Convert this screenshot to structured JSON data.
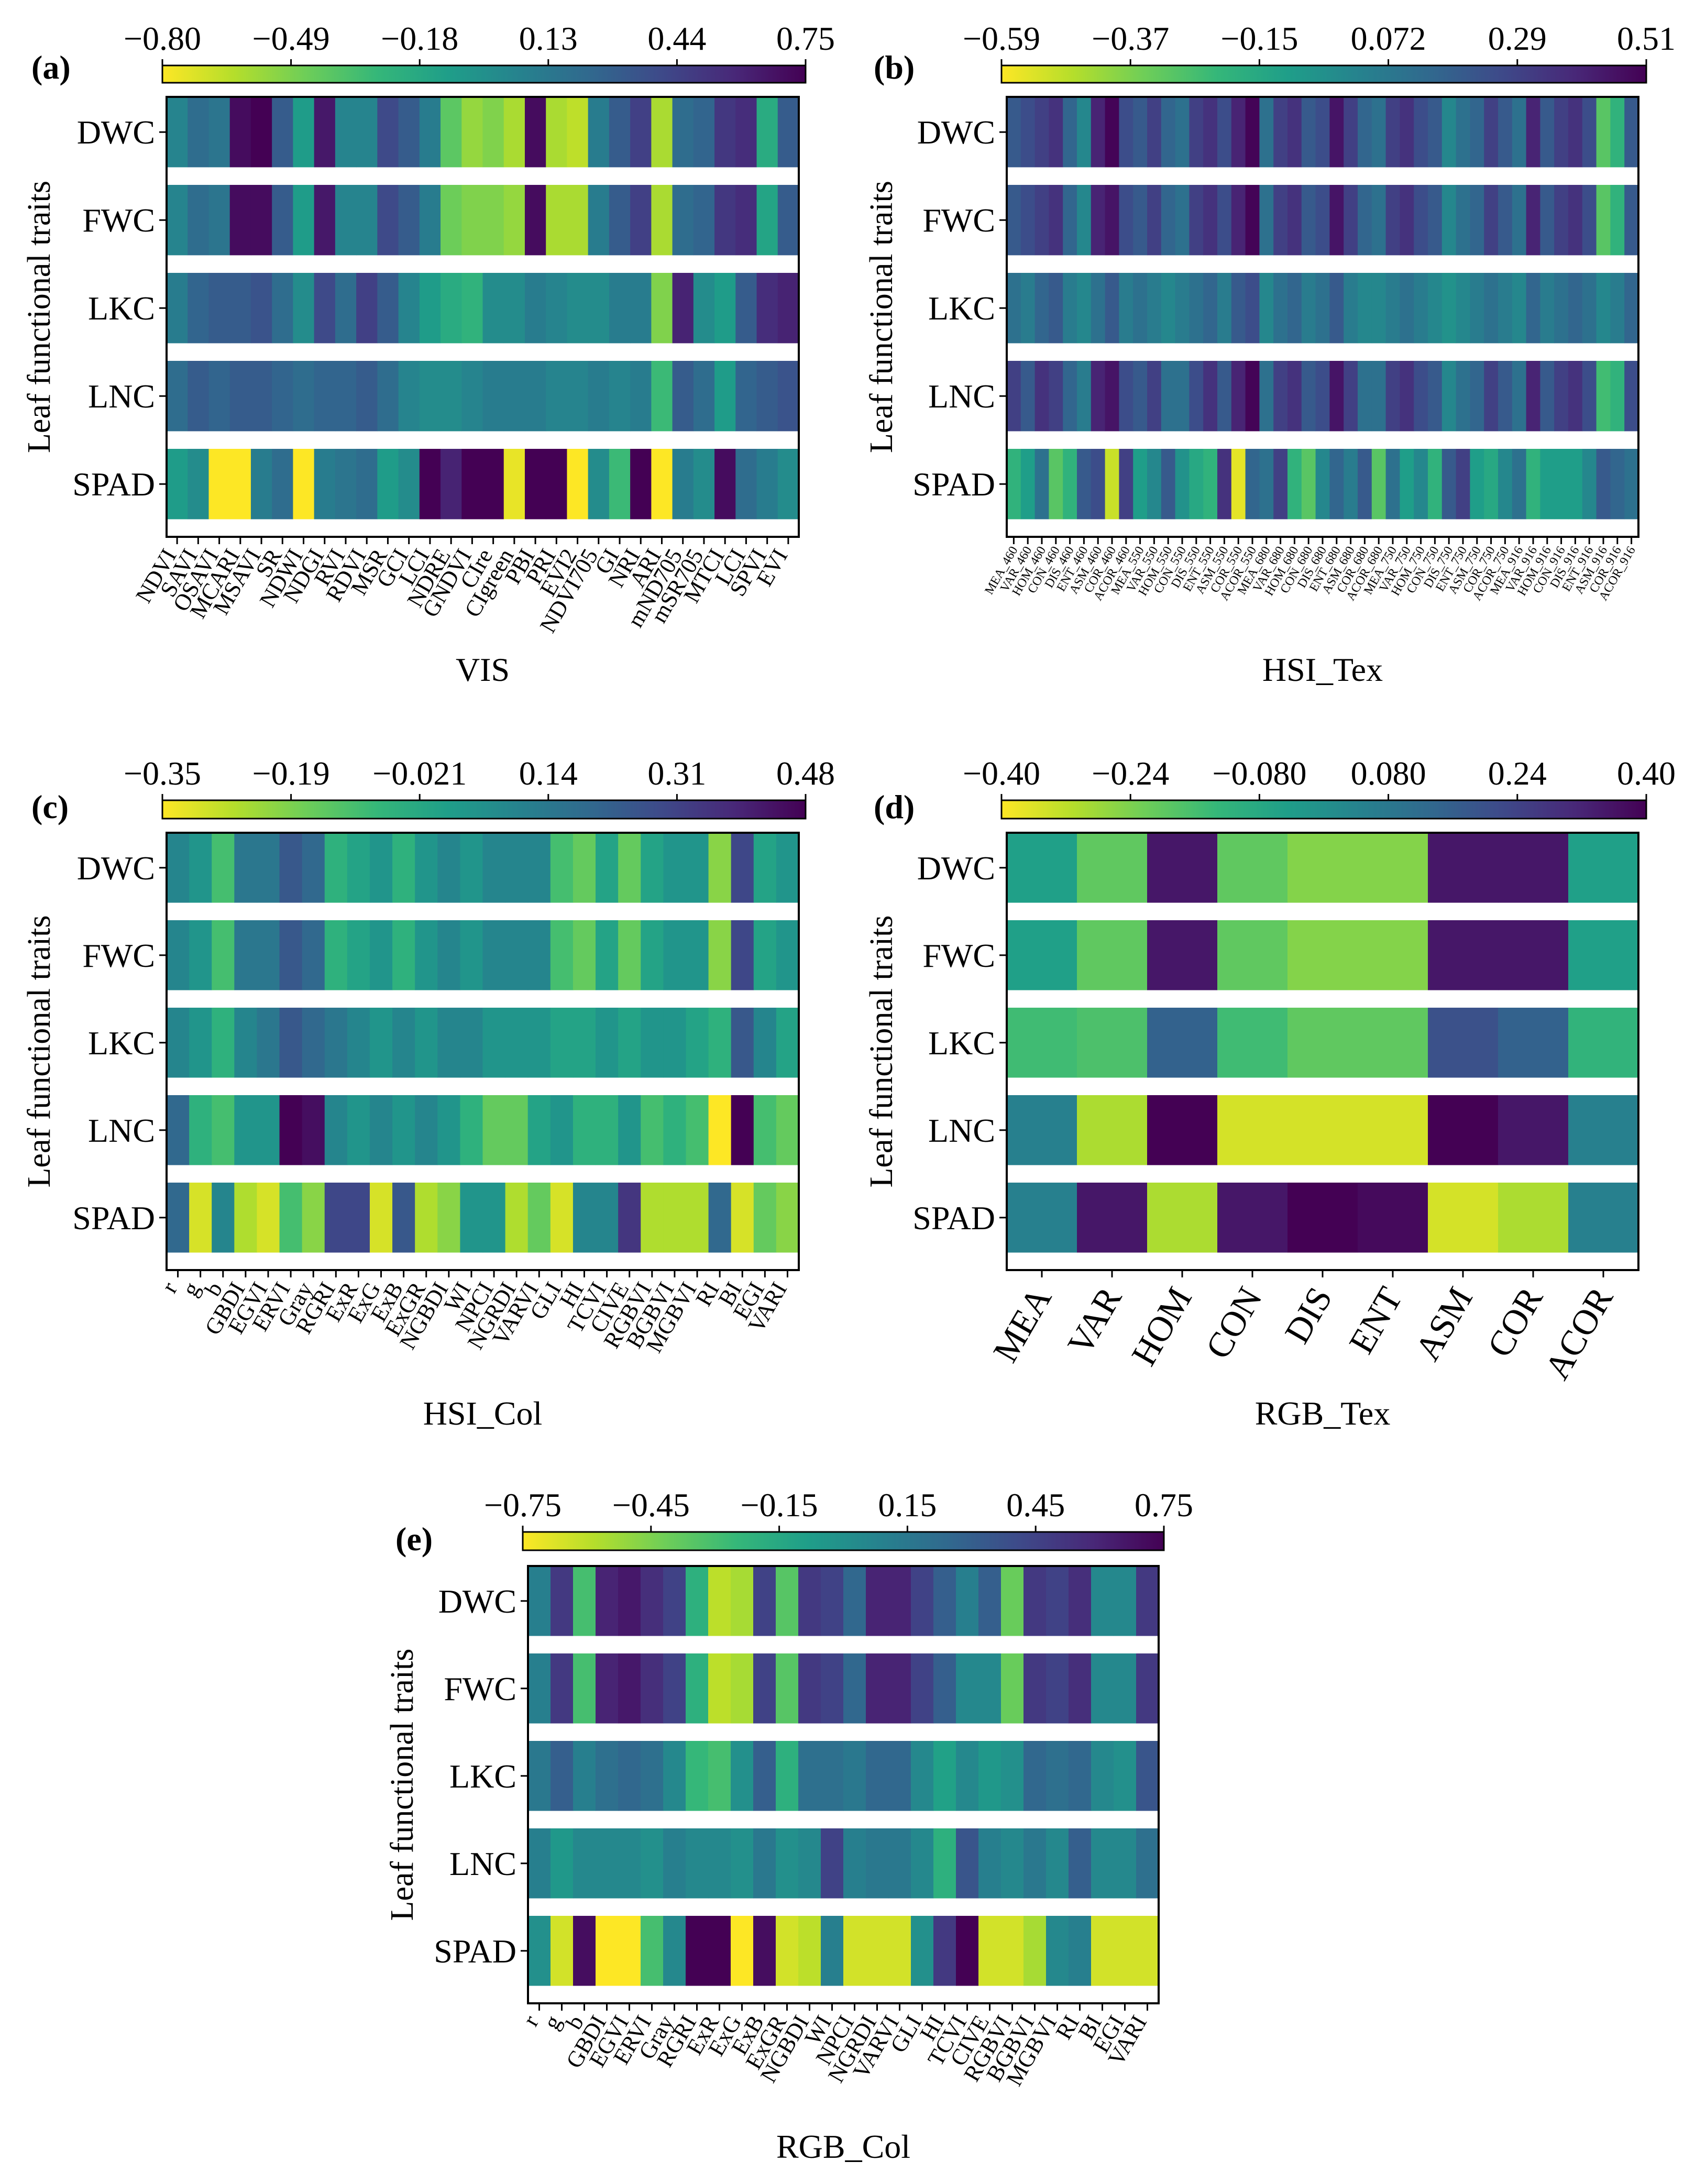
{
  "ylabel": "Leaf functional traits",
  "row_labels": [
    "DWC",
    "FWC",
    "LKC",
    "LNC",
    "SPAD"
  ],
  "colormap": {
    "name": "viridis_r",
    "stops": [
      "#fde725",
      "#b5de2b",
      "#6ece58",
      "#35b779",
      "#1f9e89",
      "#26828e",
      "#31688e",
      "#3e4989",
      "#482878",
      "#440154"
    ]
  },
  "chart_data": [
    {
      "panel": "(a)",
      "type": "heatmap",
      "xlabel": "VIS",
      "colorbar_ticks": [
        "−0.80",
        "−0.49",
        "−0.18",
        "0.13",
        "0.44",
        "0.75"
      ],
      "vmin": -0.8,
      "vmax": 0.75,
      "rows": [
        "DWC",
        "FWC",
        "LKC",
        "LNC",
        "SPAD"
      ],
      "columns": [
        "NDVI",
        "SAVI",
        "OSAVI",
        "MCARI",
        "MSAVI",
        "SR",
        "NDWI",
        "NDGI",
        "RVI",
        "RDVI",
        "MSR",
        "GCI",
        "LCI",
        "NDRE",
        "GNDVI",
        "CIre",
        "CIgreen",
        "PBI",
        "PRI",
        "EVI2",
        "NDVI705",
        "GI",
        "NRI",
        "ARI",
        "mND705",
        "mSR705",
        "MTCI",
        "LCI",
        "SPVI",
        "EVI"
      ],
      "values": [
        [
          0.05,
          0.2,
          0.15,
          0.7,
          0.75,
          0.3,
          -0.1,
          0.65,
          0.05,
          0.05,
          0.4,
          0.3,
          0.1,
          -0.4,
          -0.55,
          -0.5,
          -0.6,
          0.7,
          -0.6,
          -0.65,
          0.1,
          0.3,
          0.45,
          -0.6,
          0.2,
          0.25,
          0.5,
          0.55,
          -0.2,
          0.3
        ],
        [
          0.05,
          0.2,
          0.15,
          0.7,
          0.7,
          0.3,
          -0.1,
          0.65,
          0.05,
          0.05,
          0.4,
          0.3,
          0.1,
          -0.45,
          -0.5,
          -0.5,
          -0.55,
          0.7,
          -0.6,
          -0.6,
          0.1,
          0.3,
          0.45,
          -0.6,
          0.2,
          0.25,
          0.5,
          0.55,
          -0.15,
          0.3
        ],
        [
          0.1,
          0.25,
          0.3,
          0.3,
          0.35,
          0.2,
          0.0,
          0.4,
          0.2,
          0.45,
          0.3,
          0.05,
          -0.1,
          -0.2,
          -0.25,
          0.0,
          0.0,
          0.1,
          0.05,
          0.0,
          0.0,
          0.1,
          0.1,
          -0.5,
          0.6,
          0.0,
          -0.1,
          0.3,
          0.55,
          0.6
        ],
        [
          0.2,
          0.3,
          0.25,
          0.3,
          0.3,
          0.25,
          0.2,
          0.25,
          0.25,
          0.3,
          0.2,
          0.05,
          0.0,
          0.0,
          0.05,
          0.1,
          0.1,
          0.1,
          0.05,
          0.05,
          0.1,
          0.05,
          0.1,
          -0.3,
          0.3,
          0.2,
          -0.1,
          0.25,
          0.3,
          0.35
        ],
        [
          -0.1,
          0.0,
          -0.8,
          -0.8,
          0.1,
          0.2,
          -0.8,
          0.1,
          0.15,
          0.2,
          -0.1,
          0.0,
          0.75,
          0.6,
          0.75,
          0.75,
          -0.75,
          0.75,
          0.75,
          -0.8,
          0.0,
          -0.3,
          0.75,
          -0.8,
          0.1,
          0.0,
          0.7,
          0.2,
          0.1,
          0.0
        ]
      ]
    },
    {
      "panel": "(b)",
      "type": "heatmap",
      "xlabel": "HSI_Tex",
      "colorbar_ticks": [
        "−0.59",
        "−0.37",
        "−0.15",
        "0.072",
        "0.29",
        "0.51"
      ],
      "vmin": -0.59,
      "vmax": 0.51,
      "rows": [
        "DWC",
        "FWC",
        "LKC",
        "LNC",
        "SPAD"
      ],
      "columns": [
        "MEA_460",
        "VAR_460",
        "HOM_460",
        "CON_460",
        "DIS_460",
        "ENT_460",
        "ASM_460",
        "COR_460",
        "ACOR_460",
        "MEA_550",
        "VAR_550",
        "HOM_550",
        "CON_550",
        "DIS_550",
        "ENT_550",
        "ASM_550",
        "COR_550",
        "ACOR_550",
        "MEA_680",
        "VAR_680",
        "HOM_680",
        "CON_680",
        "DIS_680",
        "ENT_680",
        "ASM_680",
        "COR_680",
        "ACOR_680",
        "MEA_750",
        "VAR_750",
        "HOM_750",
        "CON_750",
        "DIS_750",
        "ENT_750",
        "ASM_750",
        "COR_750",
        "ACOR_750",
        "MEA_916",
        "VAR_916",
        "HOM_916",
        "CON_916",
        "DIS_916",
        "ENT_916",
        "ASM_916",
        "COR_916",
        "ACOR_916"
      ],
      "values": [
        [
          0.2,
          0.25,
          0.3,
          0.35,
          0.15,
          0.0,
          0.4,
          0.5,
          0.25,
          0.2,
          0.3,
          0.15,
          0.1,
          0.3,
          0.35,
          0.25,
          0.4,
          0.5,
          0.1,
          0.3,
          0.35,
          0.2,
          0.25,
          0.45,
          0.3,
          0.15,
          0.1,
          0.3,
          0.35,
          0.25,
          0.2,
          0.0,
          0.1,
          0.15,
          0.3,
          0.2,
          0.1,
          0.4,
          0.2,
          0.3,
          0.35,
          0.25,
          -0.3,
          -0.2,
          0.2
        ],
        [
          0.2,
          0.25,
          0.3,
          0.35,
          0.15,
          0.0,
          0.4,
          0.45,
          0.25,
          0.2,
          0.3,
          0.15,
          0.1,
          0.3,
          0.35,
          0.25,
          0.4,
          0.5,
          0.1,
          0.3,
          0.35,
          0.2,
          0.25,
          0.45,
          0.3,
          0.15,
          0.1,
          0.3,
          0.35,
          0.25,
          0.2,
          0.0,
          0.1,
          0.15,
          0.3,
          0.2,
          0.1,
          0.4,
          0.2,
          0.3,
          0.35,
          0.25,
          -0.3,
          -0.2,
          0.2
        ],
        [
          0.1,
          0.05,
          0.15,
          0.2,
          0.05,
          0.0,
          0.1,
          0.2,
          0.05,
          0.1,
          0.05,
          0.0,
          0.05,
          0.1,
          0.15,
          0.05,
          0.2,
          0.25,
          0.0,
          0.1,
          0.15,
          0.05,
          0.1,
          0.2,
          0.05,
          0.0,
          0.0,
          0.05,
          0.1,
          0.05,
          0.0,
          -0.05,
          0.0,
          0.05,
          0.1,
          0.05,
          0.0,
          0.15,
          0.05,
          0.1,
          0.15,
          0.1,
          0.0,
          0.05,
          0.15
        ],
        [
          0.3,
          0.2,
          0.35,
          0.3,
          0.15,
          0.05,
          0.4,
          0.45,
          0.25,
          0.2,
          0.3,
          0.1,
          0.1,
          0.25,
          0.35,
          0.2,
          0.4,
          0.5,
          0.1,
          0.3,
          0.35,
          0.2,
          0.25,
          0.45,
          0.3,
          0.1,
          0.1,
          0.3,
          0.35,
          0.25,
          0.2,
          0.0,
          0.1,
          0.15,
          0.3,
          0.2,
          0.1,
          0.4,
          0.2,
          0.3,
          0.35,
          0.25,
          -0.25,
          -0.2,
          0.25
        ],
        [
          -0.2,
          -0.1,
          0.1,
          -0.3,
          -0.2,
          0.2,
          0.25,
          -0.5,
          0.3,
          -0.1,
          0.0,
          0.2,
          -0.05,
          -0.15,
          -0.2,
          0.35,
          -0.55,
          0.15,
          0.1,
          0.3,
          -0.2,
          -0.3,
          0.0,
          0.15,
          0.05,
          0.2,
          -0.3,
          0.1,
          -0.1,
          0.0,
          -0.2,
          0.2,
          0.3,
          -0.1,
          -0.15,
          0.0,
          0.1,
          -0.2,
          -0.1,
          -0.1,
          -0.1,
          0.0,
          0.2,
          0.15,
          0.1
        ]
      ]
    },
    {
      "panel": "(c)",
      "type": "heatmap",
      "xlabel": "HSI_Col",
      "colorbar_ticks": [
        "−0.35",
        "−0.19",
        "−0.021",
        "0.14",
        "0.31",
        "0.48"
      ],
      "vmin": -0.35,
      "vmax": 0.48,
      "rows": [
        "DWC",
        "FWC",
        "LKC",
        "LNC",
        "SPAD"
      ],
      "columns": [
        "r",
        "g",
        "b",
        "GBDI",
        "EGVI",
        "ERVI",
        "Gray",
        "RGRI",
        "ExR",
        "ExG",
        "ExB",
        "ExGR",
        "NGBDI",
        "WI",
        "NPCI",
        "NGRDI",
        "VARVI",
        "GLI",
        "HI",
        "TCVI",
        "CIVE",
        "RGBVI",
        "BGBVI",
        "MGBVI",
        "RI",
        "BI",
        "EGI",
        "VARI"
      ],
      "values": [
        [
          0.1,
          0.05,
          -0.1,
          0.15,
          0.15,
          0.25,
          0.2,
          -0.05,
          0.0,
          0.05,
          -0.05,
          0.05,
          0.1,
          0.05,
          0.1,
          0.1,
          0.1,
          -0.1,
          -0.15,
          0.0,
          -0.15,
          0.0,
          0.05,
          0.05,
          -0.2,
          0.3,
          0.0,
          0.05
        ],
        [
          0.1,
          0.05,
          -0.1,
          0.15,
          0.15,
          0.25,
          0.2,
          -0.05,
          0.0,
          0.05,
          -0.05,
          0.05,
          0.1,
          0.05,
          0.1,
          0.1,
          0.1,
          -0.1,
          -0.15,
          0.0,
          -0.15,
          0.0,
          0.05,
          0.05,
          -0.2,
          0.3,
          0.0,
          0.05
        ],
        [
          0.1,
          0.05,
          -0.05,
          0.1,
          0.15,
          0.25,
          0.2,
          0.15,
          0.1,
          0.05,
          0.1,
          0.05,
          0.1,
          0.1,
          0.05,
          0.05,
          0.05,
          0.0,
          0.0,
          0.05,
          0.0,
          0.05,
          0.05,
          0.0,
          -0.05,
          0.25,
          0.1,
          0.0
        ],
        [
          0.2,
          -0.05,
          -0.1,
          0.05,
          0.05,
          0.48,
          0.45,
          0.1,
          0.05,
          0.1,
          0.05,
          0.1,
          0.05,
          -0.05,
          -0.15,
          -0.15,
          0.0,
          0.05,
          -0.05,
          -0.05,
          0.05,
          -0.1,
          -0.05,
          -0.1,
          -0.35,
          0.48,
          -0.1,
          -0.15
        ],
        [
          0.2,
          -0.3,
          0.1,
          -0.25,
          -0.3,
          -0.1,
          -0.2,
          0.3,
          0.3,
          -0.3,
          0.25,
          -0.25,
          -0.2,
          0.05,
          0.05,
          -0.25,
          -0.15,
          -0.3,
          0.1,
          0.1,
          0.35,
          -0.25,
          -0.25,
          -0.25,
          0.2,
          -0.3,
          -0.15,
          -0.2
        ]
      ]
    },
    {
      "panel": "(d)",
      "type": "heatmap",
      "xlabel": "RGB_Tex",
      "colorbar_ticks": [
        "−0.40",
        "−0.24",
        "−0.080",
        "0.080",
        "0.24",
        "0.40"
      ],
      "vmin": -0.4,
      "vmax": 0.4,
      "rows": [
        "DWC",
        "FWC",
        "LKC",
        "LNC",
        "SPAD"
      ],
      "columns": [
        "MEA",
        "VAR",
        "HOM",
        "CON",
        "DIS",
        "ENT",
        "ASM",
        "COR",
        "ACOR"
      ],
      "values": [
        [
          -0.05,
          -0.2,
          0.35,
          -0.2,
          -0.25,
          -0.25,
          0.35,
          0.35,
          -0.05
        ],
        [
          -0.05,
          -0.2,
          0.35,
          -0.2,
          -0.25,
          -0.25,
          0.35,
          0.35,
          -0.05
        ],
        [
          -0.15,
          -0.17,
          0.15,
          -0.15,
          -0.2,
          -0.2,
          0.2,
          0.15,
          -0.12
        ],
        [
          0.05,
          -0.3,
          0.4,
          -0.35,
          -0.35,
          -0.35,
          0.4,
          0.35,
          0.05
        ],
        [
          0.05,
          0.35,
          -0.3,
          0.35,
          0.4,
          0.38,
          -0.35,
          -0.3,
          0.05
        ]
      ]
    },
    {
      "panel": "(e)",
      "type": "heatmap",
      "xlabel": "RGB_Col",
      "colorbar_ticks": [
        "−0.75",
        "−0.45",
        "−0.15",
        "0.15",
        "0.45",
        "0.75"
      ],
      "vmin": -0.75,
      "vmax": 0.75,
      "rows": [
        "DWC",
        "FWC",
        "LKC",
        "LNC",
        "SPAD"
      ],
      "columns": [
        "r",
        "g",
        "b",
        "GBDI",
        "EGVI",
        "ERVI",
        "Gray",
        "RGRI",
        "ExR",
        "ExG",
        "ExB",
        "ExGR",
        "NGBDI",
        "WI",
        "NPCI",
        "NGRDI",
        "VARVI",
        "GLI",
        "HI",
        "TCVI",
        "CIVE",
        "RGBVI",
        "BGBVI",
        "MGBVI",
        "RI",
        "BI",
        "EGI",
        "VARI"
      ],
      "values": [
        [
          0.1,
          0.5,
          -0.3,
          0.6,
          0.65,
          0.55,
          0.45,
          -0.2,
          -0.6,
          -0.55,
          0.45,
          -0.35,
          0.5,
          0.45,
          0.25,
          0.6,
          0.6,
          0.45,
          0.3,
          0.1,
          0.3,
          -0.4,
          0.5,
          0.45,
          0.55,
          0.05,
          0.05,
          0.5
        ],
        [
          0.1,
          0.5,
          -0.3,
          0.6,
          0.65,
          0.55,
          0.45,
          -0.2,
          -0.6,
          -0.55,
          0.45,
          -0.35,
          0.5,
          0.45,
          0.25,
          0.6,
          0.6,
          0.45,
          0.3,
          0.05,
          0.05,
          -0.4,
          0.5,
          0.45,
          0.55,
          0.05,
          0.05,
          0.5
        ],
        [
          0.15,
          0.3,
          0.1,
          0.2,
          0.25,
          0.2,
          0.05,
          -0.25,
          -0.3,
          0.0,
          0.3,
          -0.2,
          0.2,
          0.2,
          0.15,
          0.25,
          0.25,
          0.05,
          -0.1,
          0.05,
          -0.05,
          0.0,
          0.25,
          0.2,
          0.25,
          0.05,
          0.0,
          0.35
        ],
        [
          0.1,
          -0.05,
          0.05,
          0.05,
          0.05,
          0.0,
          0.1,
          0.05,
          0.05,
          0.0,
          0.15,
          0.0,
          0.05,
          0.45,
          0.1,
          0.15,
          0.15,
          0.05,
          -0.2,
          0.35,
          0.1,
          0.05,
          0.15,
          0.05,
          0.3,
          0.05,
          0.05,
          0.2
        ],
        [
          0.0,
          -0.65,
          0.7,
          -0.75,
          -0.75,
          -0.3,
          0.05,
          0.75,
          0.75,
          -0.75,
          0.7,
          -0.65,
          -0.6,
          0.1,
          -0.65,
          -0.65,
          -0.65,
          0.0,
          0.5,
          0.75,
          -0.65,
          -0.65,
          -0.55,
          0.05,
          0.1,
          -0.65,
          -0.65,
          -0.65
        ]
      ]
    }
  ]
}
